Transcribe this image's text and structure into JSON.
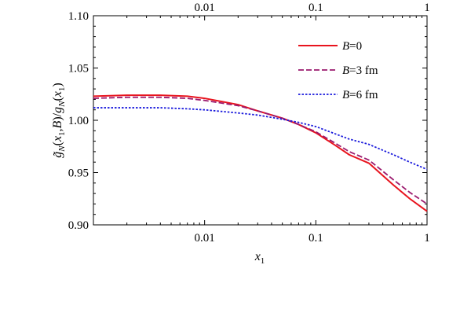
{
  "chart_data": {
    "type": "line",
    "xscale": "log",
    "xlim": [
      0.001,
      1
    ],
    "ylim": [
      0.9,
      1.1
    ],
    "xlabel": "x1",
    "ylabel": "g̃N(x1,B)/gN(x1)",
    "x_ticks": [
      0.01,
      0.1,
      1
    ],
    "x_tick_labels": [
      "0.01",
      "0.1",
      "1"
    ],
    "y_ticks": [
      0.9,
      0.95,
      1.0,
      1.05,
      1.1
    ],
    "y_tick_labels": [
      "0.90",
      "0.95",
      "1.00",
      "1.05",
      "1.10"
    ],
    "legend_position": "top-right",
    "series": [
      {
        "name": "B=0",
        "color": "#e8141e",
        "style": "solid",
        "x": [
          0.001,
          0.002,
          0.004,
          0.007,
          0.01,
          0.02,
          0.03,
          0.05,
          0.07,
          0.1,
          0.15,
          0.2,
          0.3,
          0.5,
          0.7,
          1.0
        ],
        "y": [
          1.023,
          1.024,
          1.024,
          1.023,
          1.021,
          1.015,
          1.009,
          1.002,
          0.996,
          0.988,
          0.976,
          0.967,
          0.959,
          0.938,
          0.925,
          0.913
        ]
      },
      {
        "name": "B=3 fm",
        "color": "#9b1a6e",
        "style": "dashed",
        "x": [
          0.001,
          0.002,
          0.004,
          0.007,
          0.01,
          0.02,
          0.03,
          0.05,
          0.07,
          0.1,
          0.15,
          0.2,
          0.3,
          0.5,
          0.7,
          1.0
        ],
        "y": [
          1.021,
          1.022,
          1.022,
          1.021,
          1.019,
          1.014,
          1.009,
          1.002,
          0.996,
          0.989,
          0.978,
          0.97,
          0.962,
          0.943,
          0.931,
          0.92
        ]
      },
      {
        "name": "B=6 fm",
        "color": "#1a1adc",
        "style": "dotted",
        "x": [
          0.001,
          0.002,
          0.004,
          0.007,
          0.01,
          0.02,
          0.03,
          0.05,
          0.07,
          0.1,
          0.15,
          0.2,
          0.3,
          0.5,
          0.7,
          1.0
        ],
        "y": [
          1.012,
          1.012,
          1.012,
          1.011,
          1.01,
          1.007,
          1.005,
          1.001,
          0.998,
          0.994,
          0.987,
          0.982,
          0.977,
          0.967,
          0.96,
          0.953
        ]
      }
    ]
  }
}
